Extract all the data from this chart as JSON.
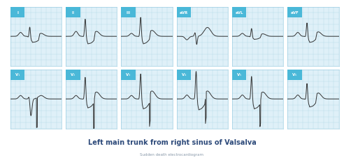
{
  "title": "Left main trunk from right sinus of Valsalva",
  "subtitle": "Sudden death electrocardiogram",
  "title_color": "#2d4a7a",
  "subtitle_color": "#8a9aaa",
  "bg_color": "#ffffff",
  "grid_color": "#add8e6",
  "grid_bg": "#dff0f8",
  "label_bg": "#4ab8d8",
  "label_text_color": "#ffffff",
  "ecg_color": "#333333",
  "leads": [
    "I",
    "II",
    "III",
    "aVR",
    "aVL",
    "aVF",
    "V1",
    "V2",
    "V3",
    "V4",
    "V5",
    "V6"
  ],
  "n_cols": 6,
  "n_rows": 2
}
